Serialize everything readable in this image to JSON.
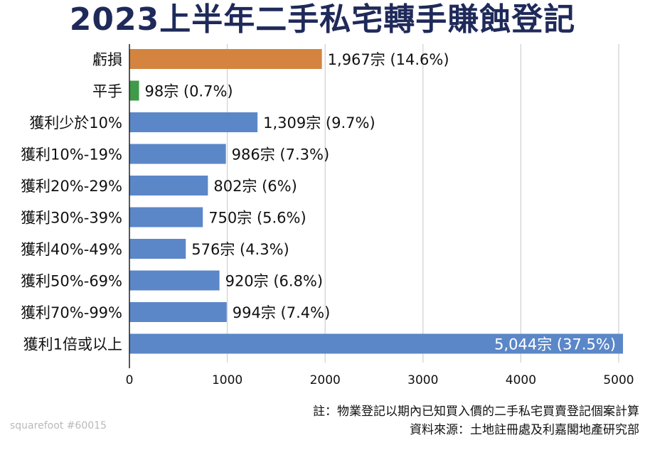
{
  "chart_data": {
    "type": "bar",
    "orientation": "horizontal",
    "title": "2023上半年二手私宅轉手賺蝕登記",
    "categories": [
      "虧損",
      "平手",
      "獲利少於10%",
      "獲利10%-19%",
      "獲利20%-29%",
      "獲利30%-39%",
      "獲利40%-49%",
      "獲利50%-69%",
      "獲利70%-99%",
      "獲利1倍或以上"
    ],
    "values": [
      1967,
      98,
      1309,
      986,
      802,
      750,
      576,
      920,
      994,
      5044
    ],
    "data_labels": [
      "1,967宗 (14.6%)",
      "98宗 (0.7%)",
      "1,309宗 (9.7%)",
      "986宗 (7.3%)",
      "802宗 (6%)",
      "750宗 (5.6%)",
      "576宗 (4.3%)",
      "920宗 (6.8%)",
      "994宗 (7.4%)",
      "5,044宗 (37.5%)"
    ],
    "bar_colors": [
      "#d4843e",
      "#3f9a4a",
      "#5b87c8",
      "#5b87c8",
      "#5b87c8",
      "#5b87c8",
      "#5b87c8",
      "#5b87c8",
      "#5b87c8",
      "#5b87c8"
    ],
    "xlim": [
      0,
      5000
    ],
    "xticks": [
      0,
      1000,
      2000,
      3000,
      4000,
      5000
    ],
    "xlabel": "",
    "ylabel": "",
    "grid": "vertical",
    "legend": "none"
  },
  "footnote": {
    "note": "註：物業登記以期內已知買入價的二手私宅買賣登記個案計算",
    "source": "資料來源：土地註冊處及利嘉閣地產研究部"
  },
  "watermark": "squarefoot #60015"
}
